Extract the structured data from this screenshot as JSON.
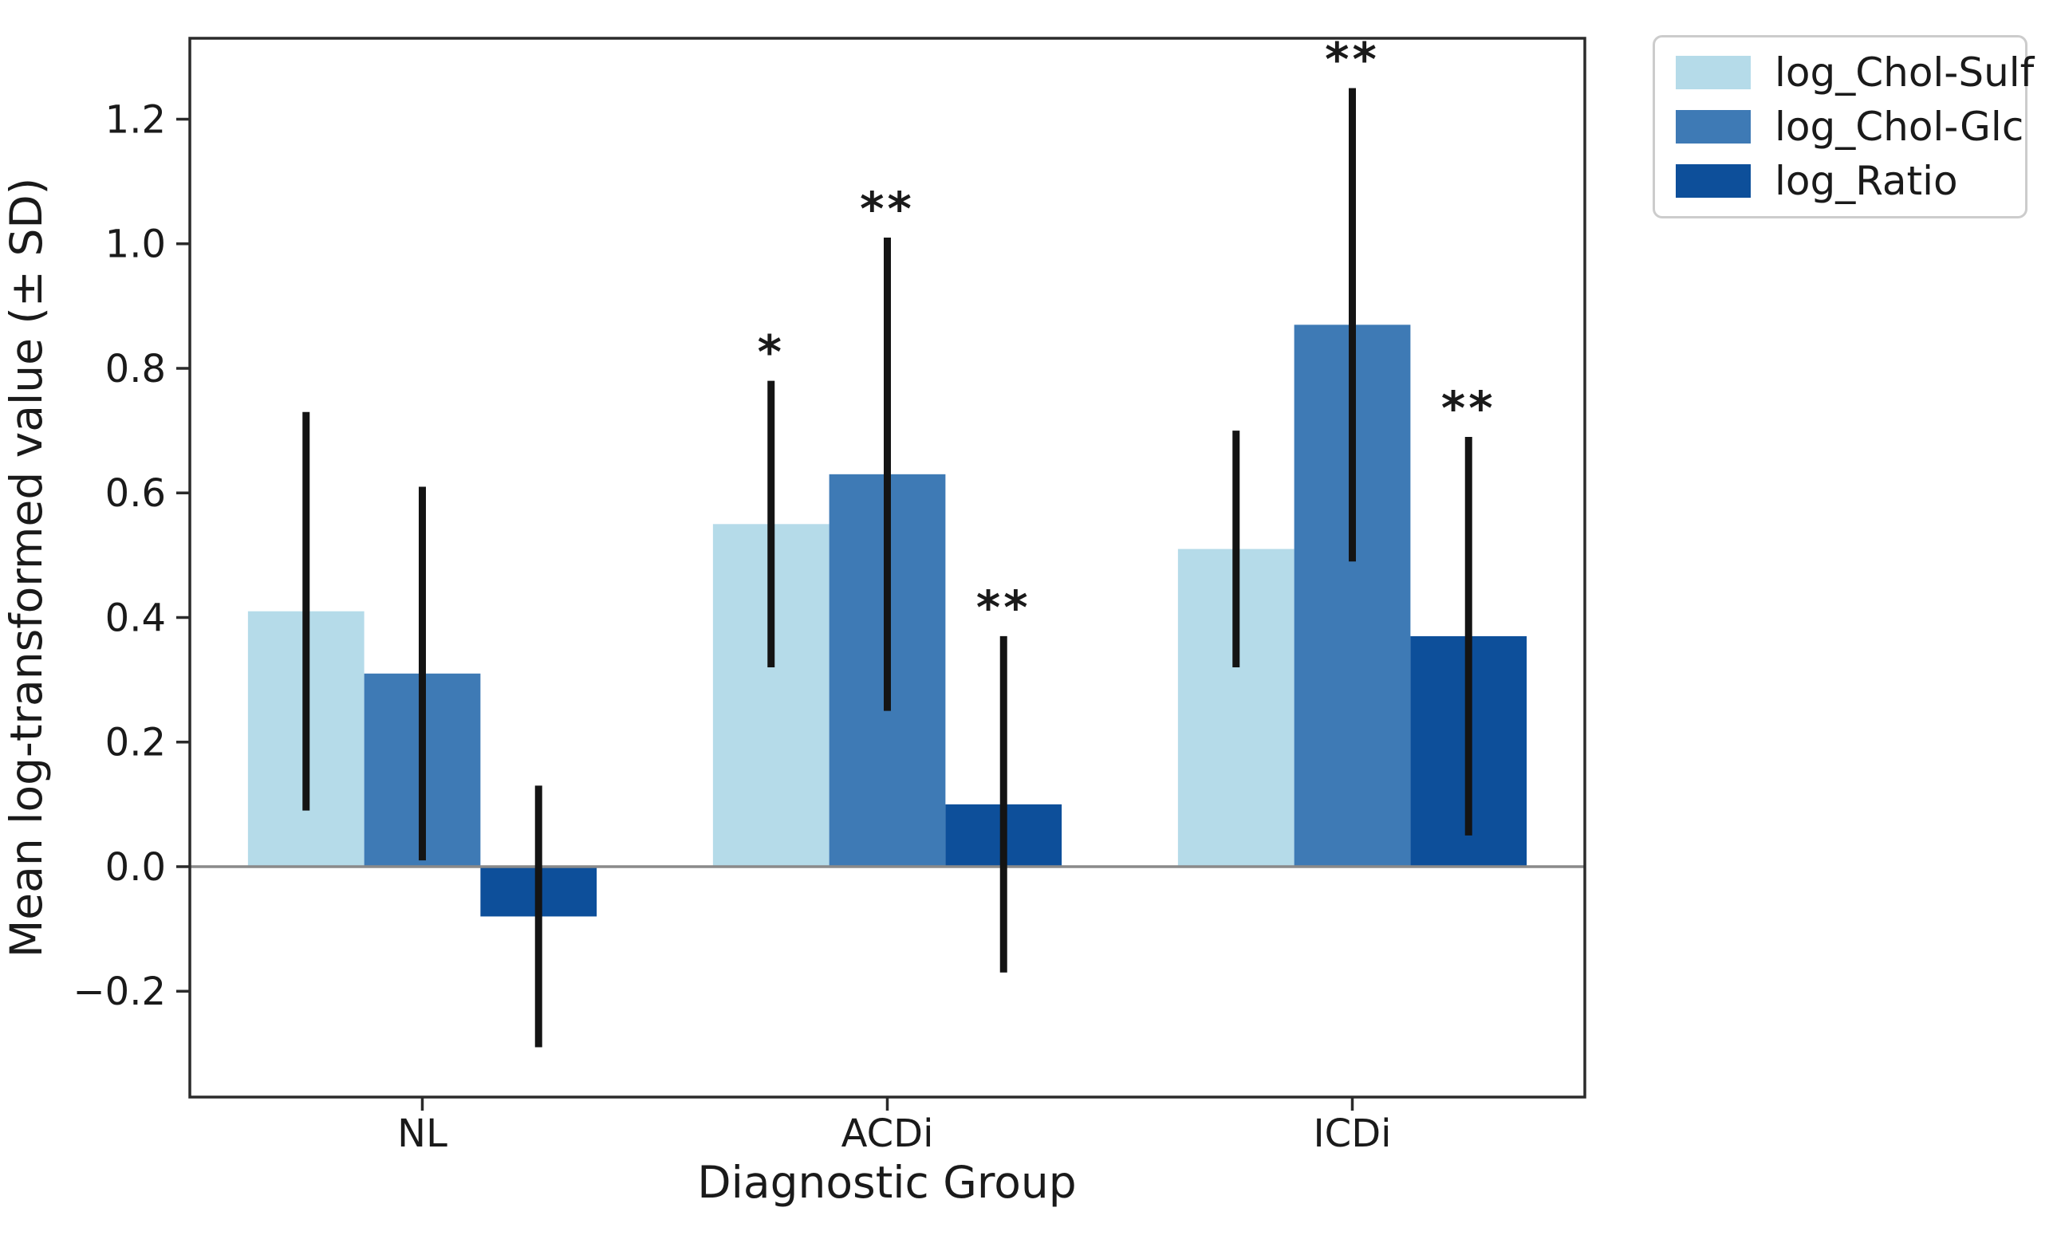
{
  "figure": {
    "background": "#ffffff"
  },
  "chart_data": {
    "type": "bar",
    "title": "",
    "xlabel": "Diagnostic Group",
    "ylabel": "Mean log-transformed value (± SD)",
    "categories": [
      "NL",
      "ACDi",
      "ICDi"
    ],
    "series": [
      {
        "name": "log_Chol-Sulf",
        "color": "#B5DBE9",
        "values": [
          0.41,
          0.55,
          0.51
        ],
        "sd": [
          0.32,
          0.23,
          0.19
        ],
        "significance": [
          "",
          "*",
          ""
        ]
      },
      {
        "name": "log_Chol-Glc",
        "color": "#3E7AB5",
        "values": [
          0.31,
          0.63,
          0.87
        ],
        "sd": [
          0.3,
          0.38,
          0.38
        ],
        "significance": [
          "",
          "**",
          "**"
        ]
      },
      {
        "name": "log_Ratio",
        "color": "#0D4F9A",
        "values": [
          -0.08,
          0.1,
          0.37
        ],
        "sd": [
          0.21,
          0.27,
          0.32
        ],
        "significance": [
          "",
          "**",
          "**"
        ]
      }
    ],
    "yticks": [
      -0.2,
      0.0,
      0.2,
      0.4,
      0.6,
      0.8,
      1.0,
      1.2
    ],
    "ytick_labels": [
      "−0.2",
      "0.0",
      "0.2",
      "0.4",
      "0.6",
      "0.8",
      "1.0",
      "1.2"
    ],
    "ylim": [
      -0.37,
      1.33
    ],
    "bar_width_fraction": 0.25,
    "grid": false,
    "legend_position": "outside-upper-right",
    "zero_line_color": "#8a8a8a",
    "error_bar_color": "#141414",
    "frame_color": "#2b2b2b"
  }
}
